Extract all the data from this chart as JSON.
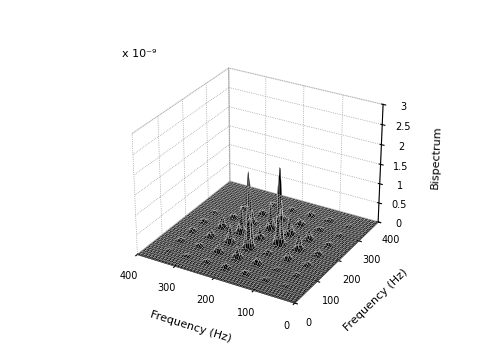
{
  "title": "",
  "xlabel": "Frequency (Hz)",
  "ylabel": "Frequency (Hz)",
  "zlabel": "Bispectrum",
  "xrange": [
    0,
    400
  ],
  "yrange": [
    0,
    400
  ],
  "zrange": [
    0,
    3e-09
  ],
  "zticks": [
    0,
    5e-10,
    1e-09,
    1.5e-09,
    2e-09,
    2.5e-09,
    3e-09
  ],
  "ztick_labels": [
    "0",
    "0.5",
    "1",
    "1.5",
    "2",
    "2.5",
    "3"
  ],
  "z_exponent_label": "x 10⁻⁹",
  "xticks": [
    0,
    100,
    200,
    300,
    400
  ],
  "yticks": [
    0,
    100,
    200,
    300,
    400
  ],
  "background_color": "#ffffff",
  "figsize": [
    5.0,
    3.63
  ],
  "dpi": 100,
  "elev": 28,
  "azim": -60,
  "sigma": 5.0,
  "spike_freqs": [
    [
      50,
      50
    ],
    [
      100,
      50
    ],
    [
      100,
      100
    ],
    [
      150,
      50
    ],
    [
      150,
      100
    ],
    [
      150,
      150
    ],
    [
      200,
      50
    ],
    [
      200,
      100
    ],
    [
      200,
      150
    ],
    [
      200,
      200
    ],
    [
      250,
      50
    ],
    [
      250,
      100
    ],
    [
      250,
      150
    ],
    [
      250,
      200
    ],
    [
      250,
      250
    ],
    [
      300,
      50
    ],
    [
      300,
      100
    ],
    [
      300,
      150
    ],
    [
      300,
      200
    ],
    [
      300,
      250
    ],
    [
      300,
      300
    ],
    [
      350,
      50
    ],
    [
      350,
      100
    ],
    [
      350,
      150
    ],
    [
      350,
      200
    ],
    [
      350,
      250
    ]
  ],
  "spike_heights": [
    3e-11,
    6e-11,
    4e-11,
    1e-10,
    2e-10,
    1e-10,
    1.5e-10,
    4e-10,
    2e-09,
    3e-10,
    8e-11,
    2.5e-10,
    5e-10,
    7e-10,
    3.5e-10,
    5e-11,
    1e-10,
    2e-10,
    3e-10,
    1.5e-10,
    8e-11,
    3e-11,
    8e-11,
    1.2e-10,
    8e-11,
    5e-11
  ]
}
